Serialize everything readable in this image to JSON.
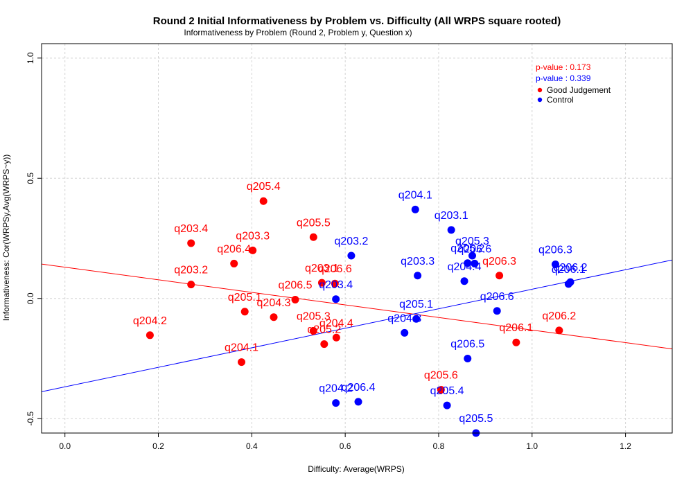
{
  "chart_data": {
    "type": "scatter",
    "title": "Round 2 Initial Informativeness by Problem vs. Difficulty (All WRPS square rooted)",
    "subtitle": "Informativeness by Problem (Round 2, Problem y, Question x)",
    "xlabel": "Difficulty: Average(WRPS)",
    "ylabel": "Informativeness: Cor(WRPSy,Avg(WRPS~y))",
    "xlim": [
      -0.05,
      1.3
    ],
    "ylim": [
      -0.56,
      1.06
    ],
    "x_ticks": [
      0.0,
      0.2,
      0.4,
      0.6,
      0.8,
      1.0,
      1.2
    ],
    "x_tick_labels": [
      "0.0",
      "0.2",
      "0.4",
      "0.6",
      "0.8",
      "1.0",
      "1.2"
    ],
    "y_ticks": [
      -0.5,
      0.0,
      0.5,
      1.0
    ],
    "y_tick_labels": [
      "-0.5",
      "0.0",
      "0.5",
      "1.0"
    ],
    "grid": true,
    "legend_position": "top-right",
    "series": [
      {
        "name": "Good Judgement",
        "color": "#ff0000",
        "p_value_label": "p-value : 0.173",
        "fit_line": {
          "x": [
            -0.05,
            1.3
          ],
          "y": [
            0.143,
            -0.21
          ]
        },
        "points": [
          {
            "label": "q205.4",
            "x": 0.425,
            "y": 0.405
          },
          {
            "label": "q203.4",
            "x": 0.27,
            "y": 0.23
          },
          {
            "label": "q203.3",
            "x": 0.402,
            "y": 0.2
          },
          {
            "label": "q205.5",
            "x": 0.532,
            "y": 0.255
          },
          {
            "label": "q206.4",
            "x": 0.362,
            "y": 0.145
          },
          {
            "label": "q203.2",
            "x": 0.27,
            "y": 0.058
          },
          {
            "label": "q203.1",
            "x": 0.55,
            "y": 0.065
          },
          {
            "label": "q206.6",
            "x": 0.578,
            "y": 0.062
          },
          {
            "label": "q206.5",
            "x": 0.493,
            "y": -0.005
          },
          {
            "label": "q205.1",
            "x": 0.385,
            "y": -0.055
          },
          {
            "label": "q204.3",
            "x": 0.447,
            "y": -0.078
          },
          {
            "label": "q205.3",
            "x": 0.532,
            "y": -0.135
          },
          {
            "label": "q204.4",
            "x": 0.581,
            "y": -0.163
          },
          {
            "label": "q205.2",
            "x": 0.555,
            "y": -0.19
          },
          {
            "label": "q204.2",
            "x": 0.182,
            "y": -0.153
          },
          {
            "label": "q204.1",
            "x": 0.378,
            "y": -0.265
          },
          {
            "label": "q206.3",
            "x": 0.93,
            "y": 0.095
          },
          {
            "label": "q206.2",
            "x": 1.058,
            "y": -0.133
          },
          {
            "label": "q206.1",
            "x": 0.966,
            "y": -0.183
          },
          {
            "label": "q205.6",
            "x": 0.805,
            "y": -0.38
          }
        ]
      },
      {
        "name": "Control",
        "color": "#0000ff",
        "p_value_label": "p-value : 0.339",
        "fit_line": {
          "x": [
            -0.05,
            1.3
          ],
          "y": [
            -0.388,
            0.16
          ]
        },
        "points": [
          {
            "label": "q204.1",
            "x": 0.75,
            "y": 0.37
          },
          {
            "label": "q203.1",
            "x": 0.827,
            "y": 0.285
          },
          {
            "label": "q203.2",
            "x": 0.613,
            "y": 0.178
          },
          {
            "label": "q205.3",
            "x": 0.872,
            "y": 0.178
          },
          {
            "label": "q205.2",
            "x": 0.862,
            "y": 0.147
          },
          {
            "label": "q206.6",
            "x": 0.877,
            "y": 0.145
          },
          {
            "label": "q203.3",
            "x": 0.755,
            "y": 0.095
          },
          {
            "label": "q204.4",
            "x": 0.855,
            "y": 0.072
          },
          {
            "label": "q206.3",
            "x": 1.05,
            "y": 0.142
          },
          {
            "label": "q206.2",
            "x": 1.082,
            "y": 0.068
          },
          {
            "label": "q206.1",
            "x": 1.078,
            "y": 0.06
          },
          {
            "label": "q203.4",
            "x": 0.58,
            "y": -0.003
          },
          {
            "label": "q206.6",
            "x": 0.925,
            "y": -0.052
          },
          {
            "label": "q205.1",
            "x": 0.752,
            "y": -0.085
          },
          {
            "label": "q204.3",
            "x": 0.727,
            "y": -0.143
          },
          {
            "label": "q206.5",
            "x": 0.862,
            "y": -0.25
          },
          {
            "label": "q204.2",
            "x": 0.58,
            "y": -0.435
          },
          {
            "label": "q206.4",
            "x": 0.628,
            "y": -0.43
          },
          {
            "label": "q205.4",
            "x": 0.818,
            "y": -0.445
          },
          {
            "label": "q205.5",
            "x": 0.88,
            "y": -0.56
          }
        ]
      }
    ]
  }
}
